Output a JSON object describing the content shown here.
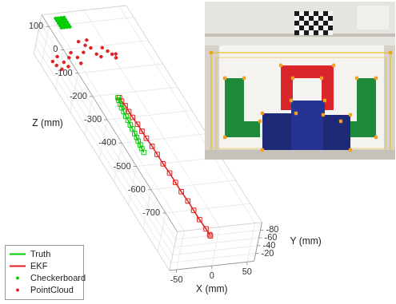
{
  "chart_data": {
    "type": "scatter3d",
    "xlabel": "X (mm)",
    "ylabel": "Y (mm)",
    "zlabel": "Z (mm)",
    "xlim": [
      -60,
      60
    ],
    "ylim": [
      -100,
      0
    ],
    "zlim": [
      -780,
      150
    ],
    "xticks": [
      -50,
      0,
      50
    ],
    "yticks": [
      -80,
      -60,
      -40,
      -20
    ],
    "zticks": [
      100,
      0,
      -100,
      -200,
      -300,
      -400,
      -500,
      -600,
      -700
    ],
    "grid": true,
    "legend": "lower left",
    "series": [
      {
        "name": "Truth",
        "color": "#00cc00",
        "marker": "square",
        "line_style": "solid",
        "x": [
          -2,
          -3,
          -4,
          -5,
          -5,
          -6,
          -6,
          -7,
          -7,
          -8,
          -8,
          -9,
          -9,
          -10,
          -10
        ],
        "y": [
          -40,
          -40,
          -39,
          -39,
          -38,
          -38,
          -37,
          -37,
          -36,
          -36,
          -35,
          -35,
          -34,
          -34,
          -33
        ],
        "z": [
          -125,
          -135,
          -150,
          -165,
          -180,
          -200,
          -215,
          -235,
          -250,
          -270,
          -285,
          -300,
          -315,
          -330,
          -345
        ]
      },
      {
        "name": "EKF",
        "color": "#e02020",
        "marker": "square",
        "line_style": "solid",
        "x": [
          0,
          0,
          1,
          1,
          1,
          2,
          2,
          2,
          3,
          3,
          3,
          4,
          4,
          4,
          5,
          5,
          5,
          6,
          6,
          6
        ],
        "y": [
          -40,
          -40,
          -40,
          -40,
          -40,
          -40,
          -40,
          -40,
          -40,
          -40,
          -40,
          -40,
          -40,
          -40,
          -40,
          -40,
          -40,
          -40,
          -40,
          -40
        ],
        "z": [
          -125,
          -140,
          -160,
          -185,
          -210,
          -240,
          -270,
          -300,
          -335,
          -370,
          -410,
          -450,
          -490,
          -530,
          -570,
          -610,
          -650,
          -690,
          -715,
          -720
        ]
      },
      {
        "name": "Checkerboard",
        "color": "#00cc00",
        "marker": "circle",
        "line_style": "none",
        "x": [
          -36,
          -32,
          -28,
          -24,
          -36,
          -32,
          -28,
          -24,
          -36,
          -32,
          -28,
          -24,
          -36,
          -32,
          -28,
          -24,
          -36,
          -32,
          -28,
          -24
        ],
        "y": [
          -80,
          -80,
          -80,
          -80,
          -80,
          -80,
          -80,
          -80,
          -80,
          -80,
          -80,
          -80,
          -80,
          -80,
          -80,
          -80,
          -80,
          -80,
          -80,
          -80
        ],
        "z": [
          160,
          160,
          160,
          160,
          150,
          150,
          150,
          150,
          140,
          140,
          140,
          140,
          130,
          130,
          130,
          130,
          120,
          120,
          120,
          120
        ]
      },
      {
        "name": "PointCloud",
        "color": "#e02020",
        "marker": "circle",
        "line_style": "none",
        "x": [
          -50,
          -46,
          -42,
          -40,
          -35,
          -30,
          -26,
          -22,
          -18,
          -14,
          -8,
          -2,
          4,
          10,
          16,
          22,
          28,
          34,
          38,
          42,
          -10,
          0
        ],
        "y": [
          -20,
          -15,
          -25,
          -10,
          -18,
          -12,
          -22,
          -28,
          -30,
          -20,
          -35,
          -40,
          -38,
          -30,
          -25,
          -32,
          -28,
          -22,
          -18,
          -15,
          -45,
          -50
        ],
        "z": [
          80,
          70,
          90,
          60,
          75,
          65,
          85,
          95,
          70,
          60,
          80,
          100,
          90,
          75,
          70,
          95,
          85,
          80,
          70,
          90,
          110,
          105
        ]
      }
    ]
  }
}
